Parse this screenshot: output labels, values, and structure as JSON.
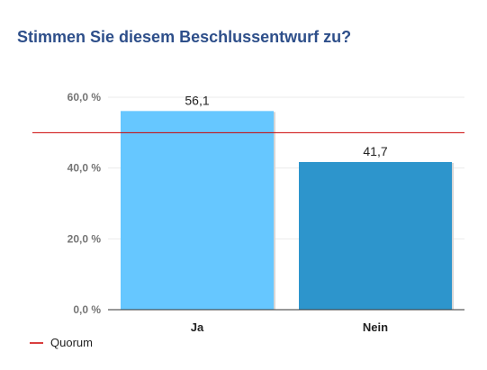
{
  "chart_data": {
    "type": "bar",
    "title": "Stimmen Sie diesem Beschlussentwurf zu?",
    "categories": [
      "Ja",
      "Nein"
    ],
    "values": [
      56.1,
      41.7
    ],
    "data_labels": [
      "56,1",
      "41,7"
    ],
    "bar_colors": [
      "#66c7ff",
      "#2d95cc"
    ],
    "ylim": [
      0,
      60
    ],
    "yticks": [
      0,
      20,
      40,
      60
    ],
    "ytick_labels": [
      "0,0 %",
      "20,0 %",
      "40,0 %",
      "60,0 %"
    ],
    "grid": true,
    "reference_line": {
      "name": "Quorum",
      "value": 50,
      "color": "#cc0000"
    },
    "legend": {
      "position": "bottom-left",
      "entries": [
        "Quorum"
      ]
    }
  }
}
